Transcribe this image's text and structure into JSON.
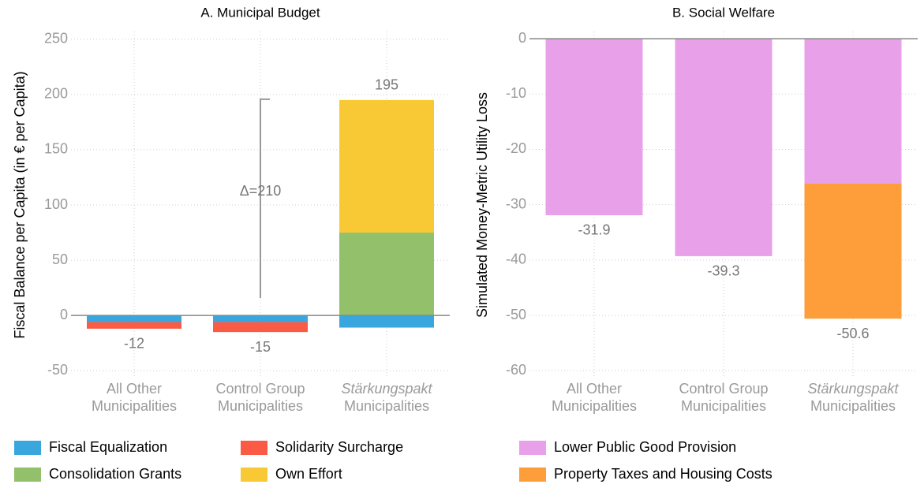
{
  "chart_data": [
    {
      "type": "bar",
      "stacked": true,
      "title": "A. Municipal Budget",
      "y_label": "Fiscal Balance per Capita (in € per Capita)",
      "categories": [
        [
          "All Other",
          "Municipalities"
        ],
        [
          "Control Group",
          "Municipalities"
        ],
        [
          "Stärkungspakt",
          "Municipalities"
        ]
      ],
      "italic_first_line": [
        false,
        false,
        true
      ],
      "series": [
        {
          "name": "Fiscal Equalization",
          "color": "#3aa6de",
          "values": [
            -6,
            -6,
            -11
          ]
        },
        {
          "name": "Solidarity Surcharge",
          "color": "#fb5a45",
          "values": [
            -6,
            -9,
            0
          ]
        },
        {
          "name": "Consolidation Grants",
          "color": "#93c06a",
          "values": [
            0,
            0,
            75
          ]
        },
        {
          "name": "Own Effort",
          "color": "#f8c935",
          "values": [
            0,
            0,
            120
          ]
        }
      ],
      "totals": [
        -12,
        -15,
        195
      ],
      "annotation": {
        "text": "Δ=210",
        "from": -15,
        "to": 195
      },
      "ylim": [
        -57,
        257
      ],
      "yticks": [
        -50,
        0,
        50,
        100,
        150,
        200,
        250
      ],
      "grid": true
    },
    {
      "type": "bar",
      "stacked": true,
      "title": "B. Social Welfare",
      "y_label": "Simulated Money-Metric Utility Loss",
      "categories": [
        [
          "All Other",
          "Municipalities"
        ],
        [
          "Control Group",
          "Municipalities"
        ],
        [
          "Stärkungspakt",
          "Municipalities"
        ]
      ],
      "italic_first_line": [
        false,
        false,
        true
      ],
      "series": [
        {
          "name": "Lower Public Good Provision",
          "color": "#e8a0e8",
          "values": [
            -31.9,
            -39.3,
            -26.2
          ]
        },
        {
          "name": "Property Taxes and Housing Costs",
          "color": "#fd9e3b",
          "values": [
            0,
            0,
            -24.4
          ]
        }
      ],
      "totals": [
        -31.9,
        -39.3,
        -50.6
      ],
      "ylim": [
        -61.4,
        1.3
      ],
      "yticks": [
        -60,
        -50,
        -40,
        -30,
        -20,
        -10,
        0
      ],
      "grid": true
    }
  ]
}
